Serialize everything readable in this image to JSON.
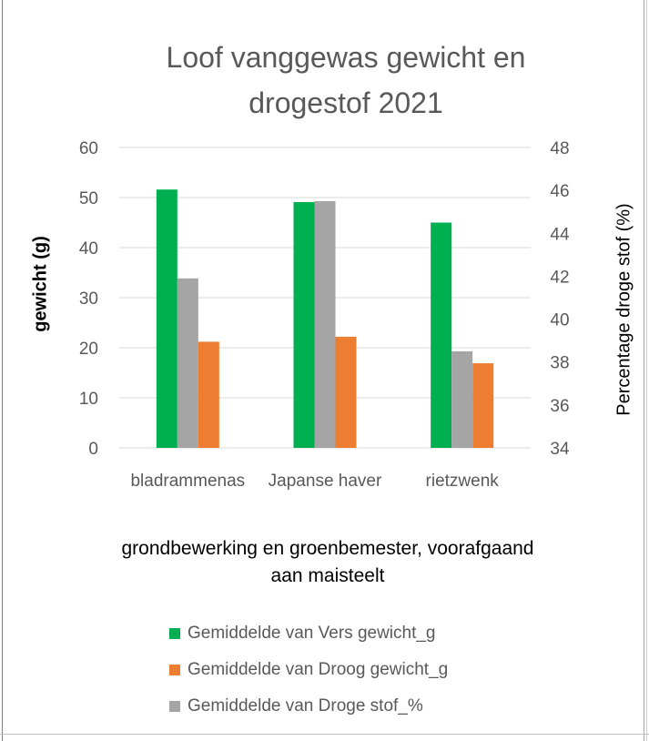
{
  "chart_data": {
    "type": "bar",
    "title": [
      "Loof vanggewas gewicht en",
      "drogestof 2021"
    ],
    "xlabel": [
      "grondbewerking en groenbemester, voorafgaand",
      "aan maisteelt"
    ],
    "ylabel": "gewicht (g)",
    "y2label": "Percentage droge stof (%)",
    "categories": [
      "bladrammenas",
      "Japanse haver",
      "rietzwenk"
    ],
    "ylim": [
      0,
      60
    ],
    "y2lim": [
      34,
      48
    ],
    "yticks": [
      "0",
      "10",
      "20",
      "30",
      "40",
      "50",
      "60"
    ],
    "y2ticks": [
      "34",
      "36",
      "38",
      "40",
      "42",
      "44",
      "46",
      "48"
    ],
    "grid": true,
    "legend_position": "bottom",
    "series": [
      {
        "name": "Gemiddelde van Vers gewicht_g",
        "axis": "left",
        "color": "#00b050",
        "values": [
          51.6,
          49.1,
          45.0
        ]
      },
      {
        "name": "Gemiddelde van Droge stof_%",
        "axis": "right",
        "color": "#a5a5a5",
        "values": [
          41.9,
          45.5,
          38.5
        ]
      },
      {
        "name": "Gemiddelde van Droog gewicht_g",
        "axis": "left",
        "color": "#ed7d31",
        "values": [
          21.2,
          22.2,
          16.9
        ]
      }
    ],
    "legend_order": [
      0,
      2,
      1
    ]
  }
}
